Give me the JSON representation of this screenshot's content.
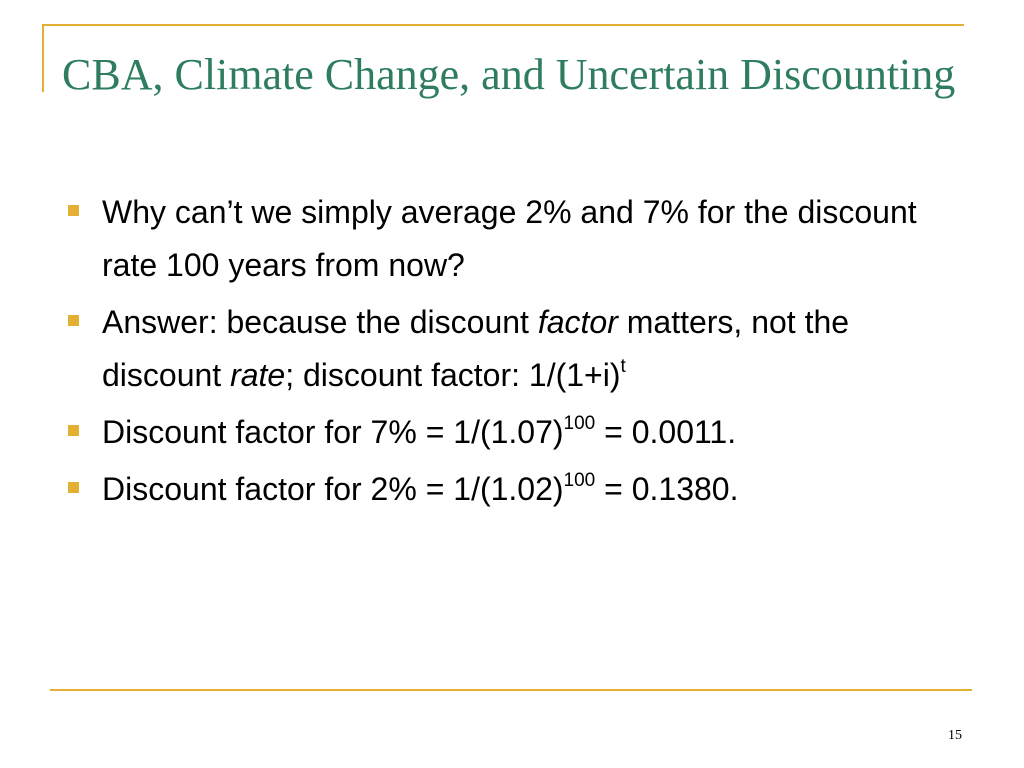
{
  "slide": {
    "title": "CBA, Climate Change, and Uncertain Discounting",
    "page_number": "15",
    "accent_color": "#e4b034",
    "title_color": "#2e7d5e",
    "bullets": [
      {
        "text": "Why can’t we simply average 2% and 7% for the discount rate 100 years from now?"
      },
      {
        "part1": "Answer: because the discount ",
        "italic1": "factor",
        "part2": " matters, not the discount ",
        "italic2": "rate",
        "part3": "; discount factor: 1/(1+i)",
        "sup": "t"
      },
      {
        "part1": "Discount factor for 7% = 1/(1.07)",
        "sup": "100",
        "part2": " = 0.0011."
      },
      {
        "part1": "Discount factor for 2% = 1/(1.02)",
        "sup": "100",
        "part2": " = 0.1380."
      }
    ]
  }
}
